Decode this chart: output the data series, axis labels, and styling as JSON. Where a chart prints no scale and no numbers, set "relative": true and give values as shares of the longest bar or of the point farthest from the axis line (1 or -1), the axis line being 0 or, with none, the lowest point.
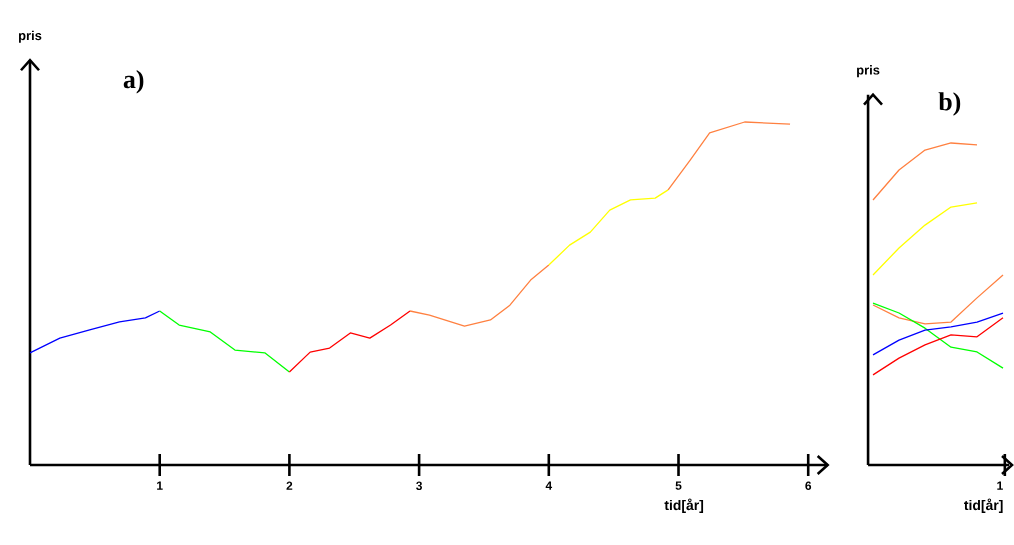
{
  "chart_data": [
    {
      "type": "line",
      "title": "a)",
      "xlabel": "tid[år]",
      "ylabel": "pris",
      "relative": true,
      "xlim": [
        0,
        6.15
      ],
      "xticks": [
        1,
        2,
        3,
        4,
        5,
        6
      ],
      "series": [
        {
          "color": "#0000ff",
          "x": [
            0,
            0.23,
            0.46,
            0.69,
            0.89,
            1.0
          ],
          "values": [
            0.327,
            0.37,
            0.394,
            0.417,
            0.429,
            0.449
          ]
        },
        {
          "color": "#00ff00",
          "x": [
            1.0,
            1.15,
            1.39,
            1.58,
            1.81,
            2.0
          ],
          "values": [
            0.449,
            0.408,
            0.388,
            0.335,
            0.327,
            0.271
          ]
        },
        {
          "color": "#ff0000",
          "x": [
            2.0,
            2.16,
            2.31,
            2.47,
            2.62,
            2.78,
            2.93
          ],
          "values": [
            0.271,
            0.329,
            0.341,
            0.385,
            0.37,
            0.408,
            0.449
          ]
        },
        {
          "color": "#ff8040",
          "x": [
            2.93,
            3.08,
            3.35,
            3.55,
            3.7,
            3.86,
            4.0
          ],
          "values": [
            0.449,
            0.437,
            0.405,
            0.423,
            0.466,
            0.539,
            0.583
          ]
        },
        {
          "color": "#ffff00",
          "x": [
            4.0,
            4.16,
            4.32,
            4.47,
            4.63,
            4.82,
            4.92
          ],
          "values": [
            0.583,
            0.641,
            0.679,
            0.743,
            0.773,
            0.778,
            0.802
          ]
        },
        {
          "color": "#ff8040",
          "x": [
            4.92,
            5.09,
            5.24,
            5.51,
            5.86
          ],
          "values": [
            0.802,
            0.889,
            0.968,
            1.0,
            0.994
          ]
        }
      ]
    },
    {
      "type": "line",
      "title": "b)",
      "xlabel": "tid[år]",
      "ylabel": "pris",
      "relative": true,
      "annotations": [
        "1"
      ],
      "categories": [
        null,
        null,
        null,
        null,
        null,
        null
      ],
      "series": [
        {
          "color": "#ff8040",
          "values": [
            0.823,
            0.916,
            0.978,
            1.0,
            0.994,
            null
          ]
        },
        {
          "color": "#ffff00",
          "values": [
            0.59,
            0.674,
            0.745,
            0.801,
            0.814,
            null
          ]
        },
        {
          "color": "#ff8040",
          "values": [
            0.497,
            0.457,
            0.438,
            0.444,
            0.519,
            0.59
          ]
        },
        {
          "color": "#00ff00",
          "values": [
            0.503,
            0.472,
            0.425,
            0.366,
            0.351,
            0.301
          ]
        },
        {
          "color": "#0000ff",
          "values": [
            0.342,
            0.388,
            0.419,
            0.429,
            0.444,
            0.472
          ]
        },
        {
          "color": "#ff0000",
          "values": [
            0.28,
            0.332,
            0.373,
            0.404,
            0.398,
            0.457
          ]
        }
      ]
    }
  ]
}
